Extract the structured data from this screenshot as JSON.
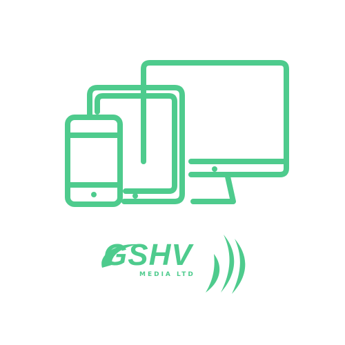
{
  "colors": {
    "accent": "#4ecb8d",
    "background": "#ffffff"
  },
  "icons": [
    "desktop-monitor-icon",
    "tablet-icon",
    "smartphone-icon"
  ],
  "logo": {
    "wordmark": "GSHV",
    "tagline": "MEDIA LTD"
  }
}
